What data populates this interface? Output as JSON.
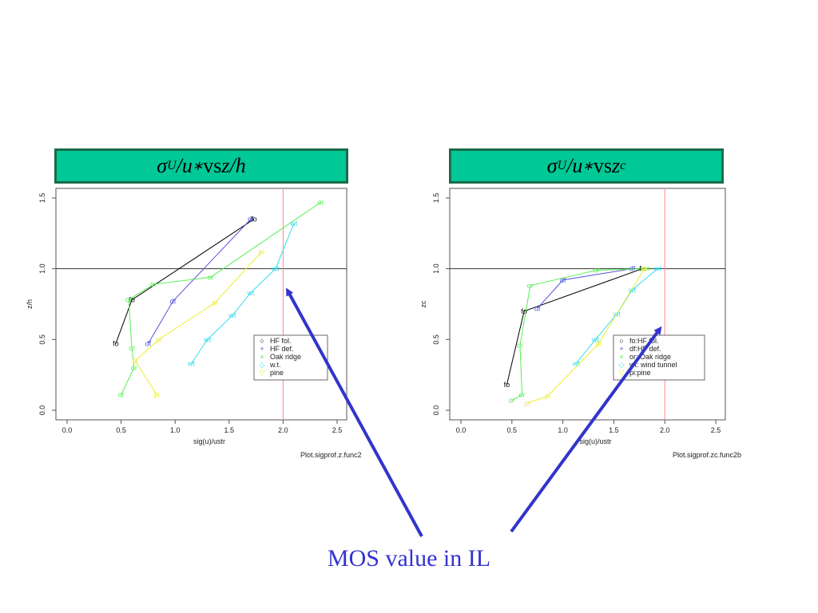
{
  "banners": {
    "left": {
      "sigma": "σ",
      "sub": "U",
      "mid": "/u",
      "star": "∗",
      "vs": " vs ",
      "rhs": "z/h"
    },
    "right": {
      "sigma": "σ",
      "sub": "U",
      "mid": "/u",
      "star": "∗",
      "vs": " vs ",
      "rhs": "z",
      "rhs_sub": "c"
    }
  },
  "caption": "MOS value in IL",
  "colors": {
    "fo": "#000000",
    "df": "#5555dd",
    "or": "#55ee55",
    "wt": "#33ddee",
    "pi": "#eeee33",
    "ref": "#ff8888",
    "arrow": "#3333cc"
  },
  "chart_data": [
    {
      "type": "line",
      "xlabel": "sig(u)/ustr",
      "ylabel": "z/h",
      "xlim": [
        0.0,
        2.5
      ],
      "ylim": [
        0.0,
        1.5
      ],
      "xticks": [
        "0.0",
        "0.5",
        "1.0",
        "1.5",
        "2.0",
        "2.5"
      ],
      "yticks": [
        "0.0",
        "0.5",
        "1.0",
        "1.5"
      ],
      "hline": 1.0,
      "vline": 2.0,
      "footer": "Plot.sigprof.z.func2",
      "legend": {
        "placement": "bottom-right",
        "entries": [
          {
            "symbol": "○",
            "key": "fo",
            "label": "HF fol."
          },
          {
            "symbol": "+",
            "key": "df",
            "label": "HF def."
          },
          {
            "symbol": "×",
            "key": "or",
            "label": "Oak ridge"
          },
          {
            "symbol": "◇",
            "key": "wt",
            "label": "w.t."
          },
          {
            "symbol": "▽",
            "key": "pi",
            "label": "pine"
          }
        ]
      },
      "series": [
        {
          "key": "fo",
          "label": "fo",
          "x": [
            0.45,
            0.6,
            1.73
          ],
          "y": [
            0.47,
            0.78,
            1.35
          ]
        },
        {
          "key": "df",
          "label": "df",
          "x": [
            0.75,
            0.98,
            1.7
          ],
          "y": [
            0.47,
            0.77,
            1.35
          ]
        },
        {
          "key": "or",
          "label": "or",
          "x": [
            0.5,
            0.62,
            0.6,
            0.57,
            0.8,
            1.33,
            2.35
          ],
          "y": [
            0.11,
            0.3,
            0.44,
            0.78,
            0.89,
            0.94,
            1.47
          ]
        },
        {
          "key": "wt",
          "label": "wt",
          "x": [
            1.15,
            1.3,
            1.53,
            1.7,
            1.93,
            2.1
          ],
          "y": [
            0.33,
            0.5,
            0.67,
            0.83,
            1.0,
            1.32
          ]
        },
        {
          "key": "pi",
          "label": "pi",
          "x": [
            0.83,
            0.63,
            0.85,
            1.37,
            1.8
          ],
          "y": [
            0.11,
            0.35,
            0.5,
            0.76,
            1.12
          ]
        }
      ]
    },
    {
      "type": "line",
      "xlabel": "sig(u)/ustr",
      "ylabel": "zc",
      "xlim": [
        0.0,
        2.5
      ],
      "ylim": [
        0.0,
        1.5
      ],
      "xticks": [
        "0.0",
        "0.5",
        "1.0",
        "1.5",
        "2.0",
        "2.5"
      ],
      "yticks": [
        "0.0",
        "0.5",
        "1.0",
        "1.5"
      ],
      "hline": 1.0,
      "vline": 2.0,
      "footer": "Plot.sigprof.zc.func2b",
      "legend": {
        "placement": "bottom-right",
        "entries": [
          {
            "symbol": "○",
            "key": "fo",
            "label": "fo:HF fol."
          },
          {
            "symbol": "+",
            "key": "df",
            "label": "df:HF def."
          },
          {
            "symbol": "×",
            "key": "or",
            "label": "or: Oak ridge"
          },
          {
            "symbol": "◇",
            "key": "wt",
            "label": "wt: wind tunnel"
          },
          {
            "symbol": "▽",
            "key": "pi",
            "label": "pi:pine"
          }
        ]
      },
      "series": [
        {
          "key": "fo",
          "label": "fo",
          "x": [
            0.45,
            0.62,
            1.78
          ],
          "y": [
            0.18,
            0.7,
            1.0
          ]
        },
        {
          "key": "df",
          "label": "df",
          "x": [
            0.75,
            1.0,
            1.68
          ],
          "y": [
            0.72,
            0.92,
            1.0
          ]
        },
        {
          "key": "or",
          "label": "or",
          "x": [
            0.5,
            0.6,
            0.58,
            0.68,
            1.33,
            1.82
          ],
          "y": [
            0.07,
            0.11,
            0.46,
            0.88,
            0.99,
            1.0
          ]
        },
        {
          "key": "wt",
          "label": "wt",
          "x": [
            1.13,
            1.32,
            1.53,
            1.68,
            1.93
          ],
          "y": [
            0.33,
            0.5,
            0.68,
            0.85,
            1.0
          ]
        },
        {
          "key": "pi",
          "label": "pi",
          "x": [
            0.65,
            0.85,
            1.35,
            1.8
          ],
          "y": [
            0.05,
            0.1,
            0.47,
            1.0
          ]
        }
      ]
    }
  ]
}
